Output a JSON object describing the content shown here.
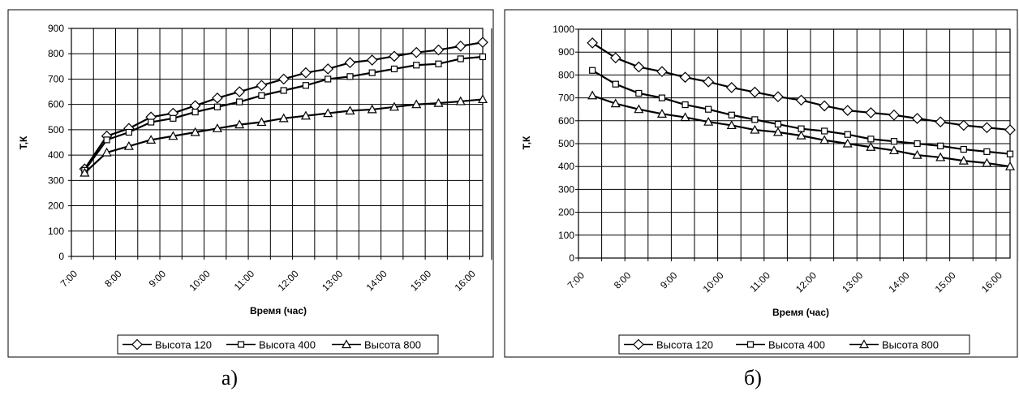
{
  "chart_data": [
    {
      "type": "line",
      "caption": "а)",
      "xlabel": "Время (час)",
      "ylabel": "Т,К",
      "ylim": [
        0,
        900
      ],
      "yticks": [
        0,
        100,
        200,
        300,
        400,
        500,
        600,
        700,
        800,
        900
      ],
      "x_tick_labels": [
        "7:00",
        "8:00",
        "9:00",
        "10:00",
        "11:00",
        "12:00",
        "13:00",
        "14:00",
        "15:00",
        "16:00"
      ],
      "x_hours": [
        7.3,
        7.8,
        8.3,
        8.8,
        9.3,
        9.8,
        10.3,
        10.8,
        11.3,
        11.8,
        12.3,
        12.8,
        13.3,
        13.8,
        14.3,
        14.8,
        15.3,
        15.8,
        16.3
      ],
      "grid": true,
      "legend": "bottom",
      "series": [
        {
          "name": "Высота 120",
          "marker": "diamond",
          "values": [
            345,
            475,
            505,
            550,
            565,
            595,
            625,
            650,
            675,
            700,
            725,
            740,
            765,
            775,
            790,
            805,
            815,
            830,
            845
          ]
        },
        {
          "name": "Высота 400",
          "marker": "square",
          "values": [
            340,
            460,
            490,
            530,
            545,
            570,
            590,
            610,
            635,
            655,
            675,
            700,
            710,
            725,
            740,
            755,
            760,
            780,
            788
          ]
        },
        {
          "name": "Высота 800",
          "marker": "triangle",
          "values": [
            330,
            410,
            435,
            460,
            475,
            490,
            505,
            520,
            530,
            545,
            555,
            565,
            575,
            580,
            590,
            600,
            605,
            612,
            620
          ]
        }
      ]
    },
    {
      "type": "line",
      "caption": "б)",
      "xlabel": "Время (час)",
      "ylabel": "Т,К",
      "ylim": [
        0,
        1000
      ],
      "yticks": [
        0,
        100,
        200,
        300,
        400,
        500,
        600,
        700,
        800,
        900,
        1000
      ],
      "x_tick_labels": [
        "7:00",
        "8:00",
        "9:00",
        "10:00",
        "11:00",
        "12:00",
        "13:00",
        "14:00",
        "15:00",
        "16:00"
      ],
      "x_hours": [
        7.3,
        7.8,
        8.3,
        8.8,
        9.3,
        9.8,
        10.3,
        10.8,
        11.3,
        11.8,
        12.3,
        12.8,
        13.3,
        13.8,
        14.3,
        14.8,
        15.3,
        15.8,
        16.3
      ],
      "grid": true,
      "legend": "bottom",
      "series": [
        {
          "name": "Высота 120",
          "marker": "diamond",
          "values": [
            940,
            875,
            835,
            815,
            790,
            770,
            745,
            725,
            705,
            690,
            665,
            645,
            635,
            625,
            610,
            595,
            580,
            570,
            560
          ]
        },
        {
          "name": "Высота 400",
          "marker": "square",
          "values": [
            820,
            760,
            720,
            700,
            670,
            650,
            625,
            605,
            585,
            565,
            555,
            540,
            520,
            510,
            500,
            490,
            475,
            465,
            455
          ]
        },
        {
          "name": "Высота 800",
          "marker": "triangle",
          "values": [
            710,
            675,
            650,
            630,
            615,
            595,
            580,
            560,
            550,
            535,
            515,
            500,
            485,
            470,
            450,
            440,
            425,
            415,
            400
          ]
        }
      ]
    }
  ]
}
